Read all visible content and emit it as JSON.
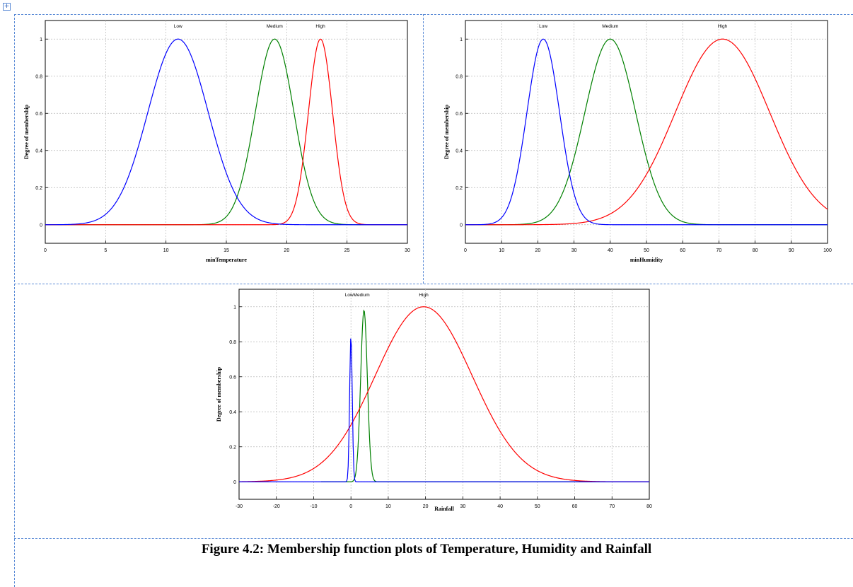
{
  "caption": "Figure 4.2: Membership function plots of Temperature, Humidity and Rainfall",
  "colors": {
    "low": "#0000ff",
    "medium": "#008000",
    "high": "#ff0000",
    "table_border": "#5b8bd6"
  },
  "chart_data": [
    {
      "type": "line",
      "xlabel": "minTemperature",
      "ylabel": "Degree of membership",
      "xlim": [
        0,
        30
      ],
      "ylim": [
        -0.1,
        1.1
      ],
      "xticks": [
        0,
        5,
        10,
        15,
        20,
        25,
        30
      ],
      "yticks": [
        0,
        0.2,
        0.4,
        0.6,
        0.8,
        1
      ],
      "grid": true,
      "series": [
        {
          "name": "Low",
          "color": "#0000ff",
          "mean": 11,
          "sigma": 2.5,
          "peak": 1,
          "x_range": [
            0,
            30
          ]
        },
        {
          "name": "Medium",
          "color": "#008000",
          "mean": 19,
          "sigma": 1.6,
          "peak": 1,
          "x_range": [
            0,
            30
          ]
        },
        {
          "name": "High",
          "color": "#ff0000",
          "mean": 22.8,
          "sigma": 1.0,
          "peak": 1,
          "x_range": [
            0,
            30
          ]
        }
      ]
    },
    {
      "type": "line",
      "xlabel": "minHumidity",
      "ylabel": "Degree of membership",
      "xlim": [
        0,
        100
      ],
      "ylim": [
        -0.1,
        1.1
      ],
      "xticks": [
        0,
        10,
        20,
        30,
        40,
        50,
        60,
        70,
        80,
        90,
        100
      ],
      "yticks": [
        0,
        0.2,
        0.4,
        0.6,
        0.8,
        1
      ],
      "grid": true,
      "series": [
        {
          "name": "Low",
          "color": "#0000ff",
          "mean": 21.5,
          "sigma": 4.5,
          "peak": 1,
          "x_range": [
            0,
            100
          ]
        },
        {
          "name": "Medium",
          "color": "#008000",
          "mean": 40,
          "sigma": 7,
          "peak": 1,
          "x_range": [
            0,
            100
          ]
        },
        {
          "name": "High",
          "color": "#ff0000",
          "mean": 71,
          "sigma": 13,
          "peak": 1,
          "x_range": [
            0,
            100
          ]
        }
      ]
    },
    {
      "type": "line",
      "xlabel": "Rainfall",
      "ylabel": "Degree of membership",
      "xlim": [
        -30,
        80
      ],
      "ylim": [
        -0.1,
        1.1
      ],
      "xticks": [
        -30,
        -20,
        -10,
        0,
        10,
        20,
        30,
        40,
        50,
        60,
        70,
        80
      ],
      "yticks": [
        0,
        0.2,
        0.4,
        0.6,
        0.8,
        1
      ],
      "grid": true,
      "series": [
        {
          "name": "Low",
          "color": "#0000ff",
          "mean": 0,
          "sigma": 0.35,
          "peak": 0.84,
          "x_range": [
            -30,
            80
          ]
        },
        {
          "name": "Medium",
          "color": "#008000",
          "mean": 3.5,
          "sigma": 0.9,
          "peak": 0.98,
          "x_range": [
            -8,
            80
          ]
        },
        {
          "name": "High",
          "color": "#ff0000",
          "mean": 19.5,
          "sigma": 13,
          "peak": 1,
          "x_range": [
            -30,
            80
          ]
        }
      ],
      "top_labels": [
        {
          "text": "LowMedium",
          "x": 1.7
        },
        {
          "text": "High",
          "x": 19.5
        }
      ]
    }
  ]
}
